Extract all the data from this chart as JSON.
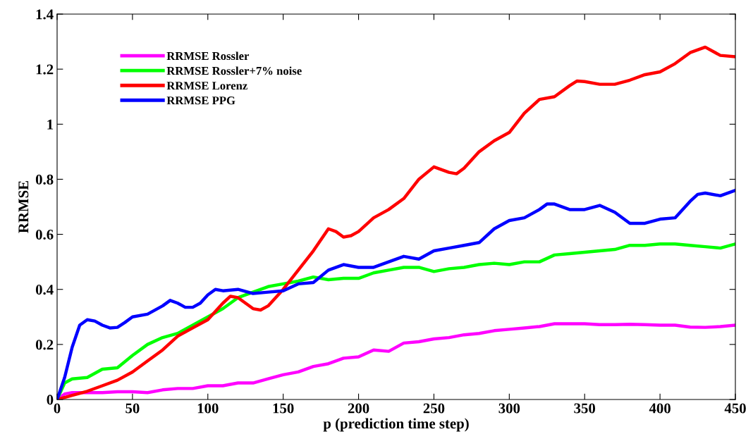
{
  "chart_data": {
    "type": "line",
    "xlabel": "p (prediction time step)",
    "ylabel": "RRMSE",
    "xlim": [
      0,
      450
    ],
    "ylim": [
      0,
      1.4
    ],
    "xticks": [
      0,
      50,
      100,
      150,
      200,
      250,
      300,
      350,
      400,
      450
    ],
    "yticks": [
      0,
      0.2,
      0.4,
      0.6,
      0.8,
      1,
      1.2,
      1.4
    ],
    "grid": false,
    "legend": "top left",
    "marker": "none",
    "line_style": "solid",
    "series": [
      {
        "name": "RRMSE Rossler",
        "color": "#ff00ff",
        "x": [
          0,
          5,
          10,
          20,
          30,
          40,
          50,
          60,
          70,
          80,
          90,
          100,
          110,
          120,
          130,
          140,
          150,
          160,
          170,
          180,
          190,
          200,
          210,
          220,
          230,
          240,
          250,
          260,
          270,
          280,
          290,
          300,
          310,
          320,
          330,
          340,
          350,
          360,
          370,
          380,
          390,
          400,
          410,
          420,
          430,
          440,
          450
        ],
        "values": [
          0,
          0.02,
          0.025,
          0.025,
          0.025,
          0.028,
          0.028,
          0.025,
          0.035,
          0.04,
          0.04,
          0.05,
          0.05,
          0.06,
          0.06,
          0.075,
          0.09,
          0.1,
          0.12,
          0.13,
          0.15,
          0.155,
          0.18,
          0.175,
          0.205,
          0.21,
          0.22,
          0.225,
          0.235,
          0.24,
          0.25,
          0.255,
          0.26,
          0.265,
          0.275,
          0.275,
          0.275,
          0.272,
          0.272,
          0.273,
          0.272,
          0.27,
          0.27,
          0.263,
          0.262,
          0.265,
          0.27
        ]
      },
      {
        "name": "RRMSE Rossler+7% noise",
        "color": "#00ff00",
        "x": [
          0,
          5,
          10,
          20,
          30,
          40,
          50,
          60,
          70,
          80,
          90,
          100,
          110,
          120,
          130,
          140,
          150,
          160,
          170,
          180,
          190,
          200,
          210,
          220,
          230,
          240,
          250,
          260,
          270,
          280,
          290,
          300,
          310,
          320,
          330,
          340,
          350,
          360,
          370,
          380,
          390,
          400,
          410,
          420,
          430,
          440,
          450
        ],
        "values": [
          0,
          0.06,
          0.075,
          0.08,
          0.11,
          0.115,
          0.16,
          0.2,
          0.225,
          0.24,
          0.27,
          0.3,
          0.33,
          0.37,
          0.39,
          0.41,
          0.42,
          0.43,
          0.445,
          0.435,
          0.44,
          0.44,
          0.46,
          0.47,
          0.48,
          0.48,
          0.465,
          0.475,
          0.48,
          0.49,
          0.495,
          0.49,
          0.5,
          0.5,
          0.525,
          0.53,
          0.535,
          0.54,
          0.545,
          0.56,
          0.56,
          0.565,
          0.565,
          0.56,
          0.555,
          0.55,
          0.565
        ]
      },
      {
        "name": "RRMSE Lorenz",
        "color": "#ff0000",
        "x": [
          0,
          10,
          20,
          30,
          40,
          50,
          60,
          70,
          80,
          90,
          100,
          110,
          115,
          120,
          130,
          135,
          140,
          150,
          160,
          170,
          180,
          185,
          190,
          195,
          200,
          210,
          220,
          230,
          240,
          250,
          260,
          265,
          270,
          280,
          290,
          300,
          310,
          320,
          330,
          340,
          345,
          350,
          360,
          370,
          380,
          390,
          400,
          410,
          420,
          430,
          440,
          450
        ],
        "values": [
          0,
          0.015,
          0.03,
          0.05,
          0.07,
          0.1,
          0.14,
          0.18,
          0.23,
          0.26,
          0.29,
          0.35,
          0.375,
          0.37,
          0.33,
          0.325,
          0.34,
          0.4,
          0.47,
          0.54,
          0.62,
          0.61,
          0.59,
          0.595,
          0.61,
          0.66,
          0.69,
          0.73,
          0.8,
          0.845,
          0.825,
          0.82,
          0.84,
          0.9,
          0.94,
          0.97,
          1.04,
          1.09,
          1.1,
          1.14,
          1.157,
          1.155,
          1.145,
          1.145,
          1.16,
          1.18,
          1.19,
          1.22,
          1.26,
          1.28,
          1.25,
          1.245
        ]
      },
      {
        "name": "RRMSE PPG",
        "color": "#0000ff",
        "x": [
          0,
          5,
          10,
          15,
          20,
          25,
          30,
          35,
          40,
          45,
          50,
          60,
          70,
          75,
          80,
          85,
          90,
          95,
          100,
          105,
          110,
          120,
          130,
          140,
          150,
          160,
          170,
          180,
          190,
          200,
          210,
          220,
          230,
          240,
          250,
          260,
          270,
          280,
          290,
          300,
          310,
          320,
          325,
          330,
          340,
          350,
          360,
          370,
          380,
          390,
          400,
          410,
          420,
          425,
          430,
          440,
          450
        ],
        "values": [
          0,
          0.08,
          0.19,
          0.27,
          0.29,
          0.285,
          0.27,
          0.26,
          0.262,
          0.28,
          0.3,
          0.31,
          0.34,
          0.36,
          0.35,
          0.335,
          0.335,
          0.35,
          0.38,
          0.4,
          0.395,
          0.4,
          0.385,
          0.39,
          0.395,
          0.42,
          0.425,
          0.47,
          0.49,
          0.48,
          0.48,
          0.5,
          0.52,
          0.51,
          0.54,
          0.55,
          0.56,
          0.57,
          0.62,
          0.65,
          0.66,
          0.69,
          0.71,
          0.71,
          0.69,
          0.69,
          0.705,
          0.68,
          0.64,
          0.64,
          0.655,
          0.66,
          0.72,
          0.745,
          0.75,
          0.74,
          0.76
        ]
      }
    ]
  }
}
